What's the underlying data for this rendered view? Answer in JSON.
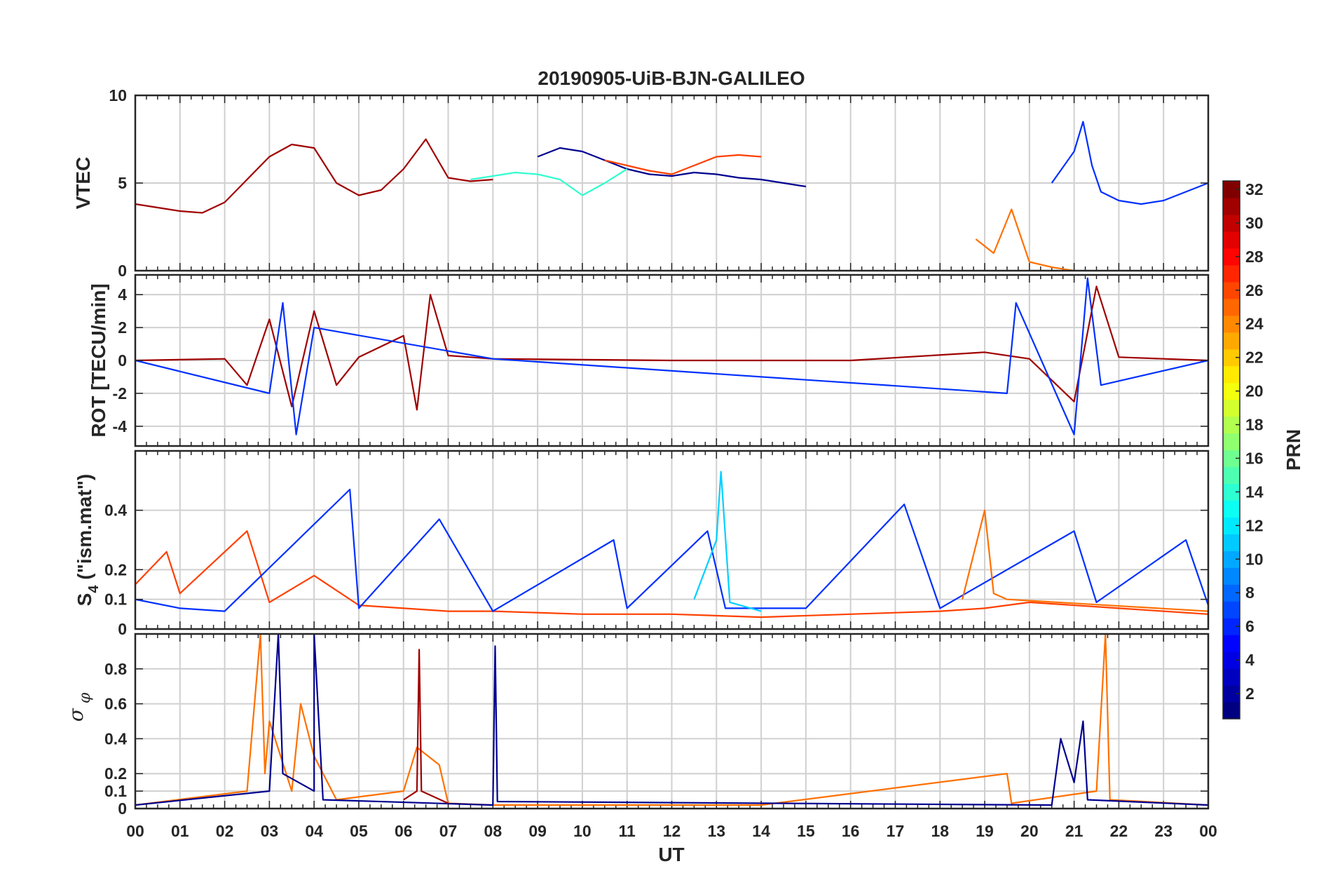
{
  "chart_data": {
    "type": "line",
    "title": "20190905-UiB-BJN-GALILEO",
    "xlabel": "UT",
    "x_tick_labels": [
      "00",
      "01",
      "02",
      "03",
      "04",
      "05",
      "06",
      "07",
      "08",
      "09",
      "10",
      "11",
      "12",
      "13",
      "14",
      "15",
      "16",
      "17",
      "18",
      "19",
      "20",
      "21",
      "22",
      "23",
      "00"
    ],
    "xlim_hours": [
      0,
      24
    ],
    "grid": true,
    "colorbar": {
      "label": "PRN",
      "colormap": "jet",
      "range": [
        1,
        32
      ],
      "tick_labels": [
        "2",
        "4",
        "6",
        "8",
        "10",
        "12",
        "14",
        "16",
        "18",
        "20",
        "22",
        "24",
        "26",
        "28",
        "30",
        "32"
      ],
      "placement": "right"
    },
    "panels": [
      {
        "id": "vtec",
        "ylabel": "VTEC",
        "ylim": [
          0,
          10
        ],
        "y_ticks": [
          0,
          5,
          10
        ],
        "y_tick_labels": [
          "0",
          "5",
          "10"
        ],
        "series": [
          {
            "prn": 31,
            "color": "#a00000",
            "x": [
              0,
              0.5,
              1,
              1.5,
              2,
              2.5,
              3,
              3.5,
              4,
              4.5,
              5,
              5.5,
              6,
              6.5,
              7,
              7.5,
              8
            ],
            "y": [
              3.8,
              3.6,
              3.4,
              3.3,
              3.9,
              5.2,
              6.5,
              7.2,
              7.0,
              5.0,
              4.3,
              4.6,
              5.8,
              7.5,
              5.3,
              5.1,
              5.2
            ]
          },
          {
            "prn": 2,
            "color": "#00008f",
            "x": [
              9,
              9.5,
              10,
              10.5,
              11,
              11.5,
              12,
              12.5,
              13,
              13.5,
              14,
              14.5,
              15
            ],
            "y": [
              6.5,
              7.0,
              6.8,
              6.3,
              5.8,
              5.5,
              5.4,
              5.6,
              5.5,
              5.3,
              5.2,
              5.0,
              4.8
            ]
          },
          {
            "prn": 26,
            "color": "#ff4000",
            "x": [
              10.5,
              11,
              11.5,
              12,
              12.5,
              13,
              13.5,
              14
            ],
            "y": [
              6.3,
              6.0,
              5.7,
              5.5,
              6.0,
              6.5,
              6.6,
              6.5
            ]
          },
          {
            "prn": 13,
            "color": "#30ffcf",
            "x": [
              7.5,
              8,
              8.5,
              9,
              9.5,
              10,
              10.5,
              11
            ],
            "y": [
              5.2,
              5.4,
              5.6,
              5.5,
              5.2,
              4.3,
              5.0,
              5.8
            ]
          },
          {
            "prn": 5,
            "color": "#0030ff",
            "x": [
              20.5,
              21,
              21.2,
              21.4,
              21.6,
              22,
              22.5,
              23,
              23.5,
              24
            ],
            "y": [
              5.0,
              6.8,
              8.5,
              6.0,
              4.5,
              4.0,
              3.8,
              4.0,
              4.5,
              5.0
            ]
          },
          {
            "prn": 24,
            "color": "#ff7000",
            "x": [
              18.8,
              19.2,
              19.6,
              20.0,
              20.5,
              21.0
            ],
            "y": [
              1.8,
              1.0,
              3.5,
              0.5,
              0.2,
              0.0
            ]
          }
        ]
      },
      {
        "id": "rot",
        "ylabel": "ROT [TECU/min]",
        "ylim": [
          -5.2,
          5.2
        ],
        "y_ticks": [
          -4,
          -2,
          0,
          2,
          4
        ],
        "y_tick_labels": [
          "-4",
          "-2",
          "0",
          "2",
          "4"
        ],
        "series": [
          {
            "prn": 31,
            "color": "#a00000",
            "x": [
              0,
              2,
              2.5,
              3,
              3.5,
              4,
              4.5,
              5,
              6,
              6.3,
              6.6,
              7,
              8,
              12,
              16,
              19,
              20,
              21,
              21.5,
              22,
              24
            ],
            "y": [
              0,
              0.1,
              -1.5,
              2.5,
              -2.8,
              3.0,
              -1.5,
              0.2,
              1.5,
              -3.0,
              4.0,
              0.3,
              0.1,
              0,
              0,
              0.5,
              0.1,
              -2.5,
              4.5,
              0.2,
              0
            ]
          },
          {
            "prn": 5,
            "color": "#0030ff",
            "x": [
              0,
              3,
              3.3,
              3.6,
              4,
              8,
              19.5,
              19.7,
              21,
              21.3,
              21.6,
              24
            ],
            "y": [
              0,
              -2.0,
              3.5,
              -4.5,
              2.0,
              0.1,
              -2.0,
              3.5,
              -4.5,
              5.0,
              -1.5,
              0
            ]
          }
        ]
      },
      {
        "id": "s4",
        "ylabel_main": "S",
        "ylabel_sub": "4",
        "ylabel_rest": " (\"ism.mat\")",
        "ylim": [
          0,
          0.6
        ],
        "y_ticks": [
          0,
          0.1,
          0.2,
          0.4
        ],
        "y_tick_labels": [
          "0",
          "0.1",
          "0.2",
          "0.4"
        ],
        "series": [
          {
            "prn": 26,
            "color": "#ff4000",
            "x": [
              0,
              0.7,
              1,
              2.5,
              3,
              4,
              5,
              6,
              7,
              8,
              10,
              12,
              14,
              16,
              18,
              19,
              20,
              22,
              24
            ],
            "y": [
              0.15,
              0.26,
              0.12,
              0.33,
              0.09,
              0.18,
              0.08,
              0.07,
              0.06,
              0.06,
              0.05,
              0.05,
              0.04,
              0.05,
              0.06,
              0.07,
              0.09,
              0.07,
              0.05
            ]
          },
          {
            "prn": 5,
            "color": "#0030ff",
            "x": [
              0,
              1,
              2,
              4.8,
              5,
              6.8,
              8,
              10.7,
              11,
              12.8,
              13.2,
              15,
              17.2,
              18,
              21,
              21.5,
              23.5,
              24
            ],
            "y": [
              0.1,
              0.07,
              0.06,
              0.47,
              0.07,
              0.37,
              0.06,
              0.3,
              0.07,
              0.33,
              0.07,
              0.07,
              0.42,
              0.07,
              0.33,
              0.09,
              0.3,
              0.08
            ]
          },
          {
            "prn": 12,
            "color": "#00d0ff",
            "x": [
              12.5,
              13,
              13.1,
              13.3,
              14
            ],
            "y": [
              0.1,
              0.3,
              0.53,
              0.09,
              0.06
            ]
          },
          {
            "prn": 24,
            "color": "#ff7000",
            "x": [
              18.5,
              19,
              19.2,
              19.5,
              24
            ],
            "y": [
              0.1,
              0.4,
              0.12,
              0.1,
              0.06
            ]
          }
        ]
      },
      {
        "id": "sigma",
        "ylabel_main": "σ",
        "ylabel_sub": "φ",
        "ylim": [
          0,
          1
        ],
        "y_ticks": [
          0,
          0.1,
          0.2,
          0.4,
          0.6,
          0.8
        ],
        "y_tick_labels": [
          "0",
          "0.1",
          "0.2",
          "0.4",
          "0.6",
          "0.8"
        ],
        "series": [
          {
            "prn": 24,
            "color": "#ff7000",
            "x": [
              0,
              2.5,
              2.8,
              2.9,
              3.0,
              3.5,
              3.7,
              4.0,
              4.5,
              6,
              6.3,
              6.8,
              7,
              8,
              14,
              19.5,
              19.6,
              21.5,
              21.7,
              21.8,
              24
            ],
            "y": [
              0.02,
              0.1,
              1.0,
              0.2,
              0.5,
              0.1,
              0.6,
              0.3,
              0.05,
              0.1,
              0.35,
              0.25,
              0.03,
              0.02,
              0.02,
              0.2,
              0.03,
              0.1,
              1.0,
              0.05,
              0.02
            ]
          },
          {
            "prn": 2,
            "color": "#00008f",
            "x": [
              0,
              3,
              3.2,
              3.3,
              4,
              4.0,
              4.2,
              8,
              8.05,
              8.1,
              20.5,
              20.7,
              21,
              21.2,
              21.3,
              24
            ],
            "y": [
              0.02,
              0.1,
              1.0,
              0.2,
              0.1,
              1.0,
              0.05,
              0.02,
              0.93,
              0.04,
              0.02,
              0.4,
              0.15,
              0.5,
              0.05,
              0.02
            ]
          },
          {
            "prn": 31,
            "color": "#a00000",
            "x": [
              6,
              6.3,
              6.35,
              6.4,
              7
            ],
            "y": [
              0.05,
              0.1,
              0.91,
              0.1,
              0.03
            ]
          }
        ]
      }
    ]
  }
}
